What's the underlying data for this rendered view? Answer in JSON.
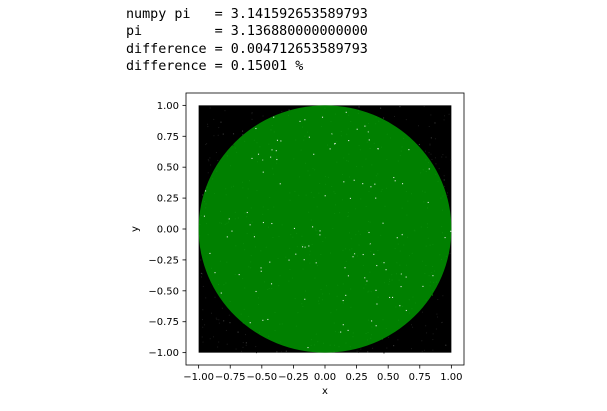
{
  "stdout": {
    "lines": [
      "numpy pi   = 3.141592653589793",
      "pi         = 3.136880000000000",
      "difference = 0.004712653589793",
      "difference = 0.15001 %"
    ]
  },
  "colors": {
    "inside": "#008000",
    "outside": "#000000",
    "background": "#ffffff"
  },
  "chart_data": {
    "type": "scatter",
    "title": "",
    "xlabel": "x",
    "ylabel": "y",
    "xlim": [
      -1.1,
      1.1
    ],
    "ylim": [
      -1.1,
      1.1
    ],
    "aspect": "equal",
    "grid": false,
    "legend": null,
    "xticks": [
      -1.0,
      -0.75,
      -0.5,
      -0.25,
      0.0,
      0.25,
      0.5,
      0.75,
      1.0
    ],
    "xtick_labels": [
      "−1.00",
      "−0.75",
      "−0.50",
      "−0.25",
      "0.00",
      "0.25",
      "0.50",
      "0.75",
      "1.00"
    ],
    "yticks": [
      1.0,
      0.75,
      0.5,
      0.25,
      0.0,
      -0.25,
      -0.5,
      -0.75,
      -1.0
    ],
    "ytick_labels": [
      "1.00",
      "0.75",
      "0.50",
      "0.25",
      "0.00",
      "−0.25",
      "−0.50",
      "−0.75",
      "−1.00"
    ],
    "series": [
      {
        "role": "inside unit circle",
        "color": "#008000",
        "region": "x^2 + y^2 <= 1",
        "x_range": [
          -1.0,
          1.0
        ],
        "y_range": [
          -1.0,
          1.0
        ]
      },
      {
        "role": "outside unit circle",
        "color": "#000000",
        "region": "x^2 + y^2 > 1",
        "x_range": [
          -1.0,
          1.0
        ],
        "y_range": [
          -1.0,
          1.0
        ]
      }
    ]
  }
}
